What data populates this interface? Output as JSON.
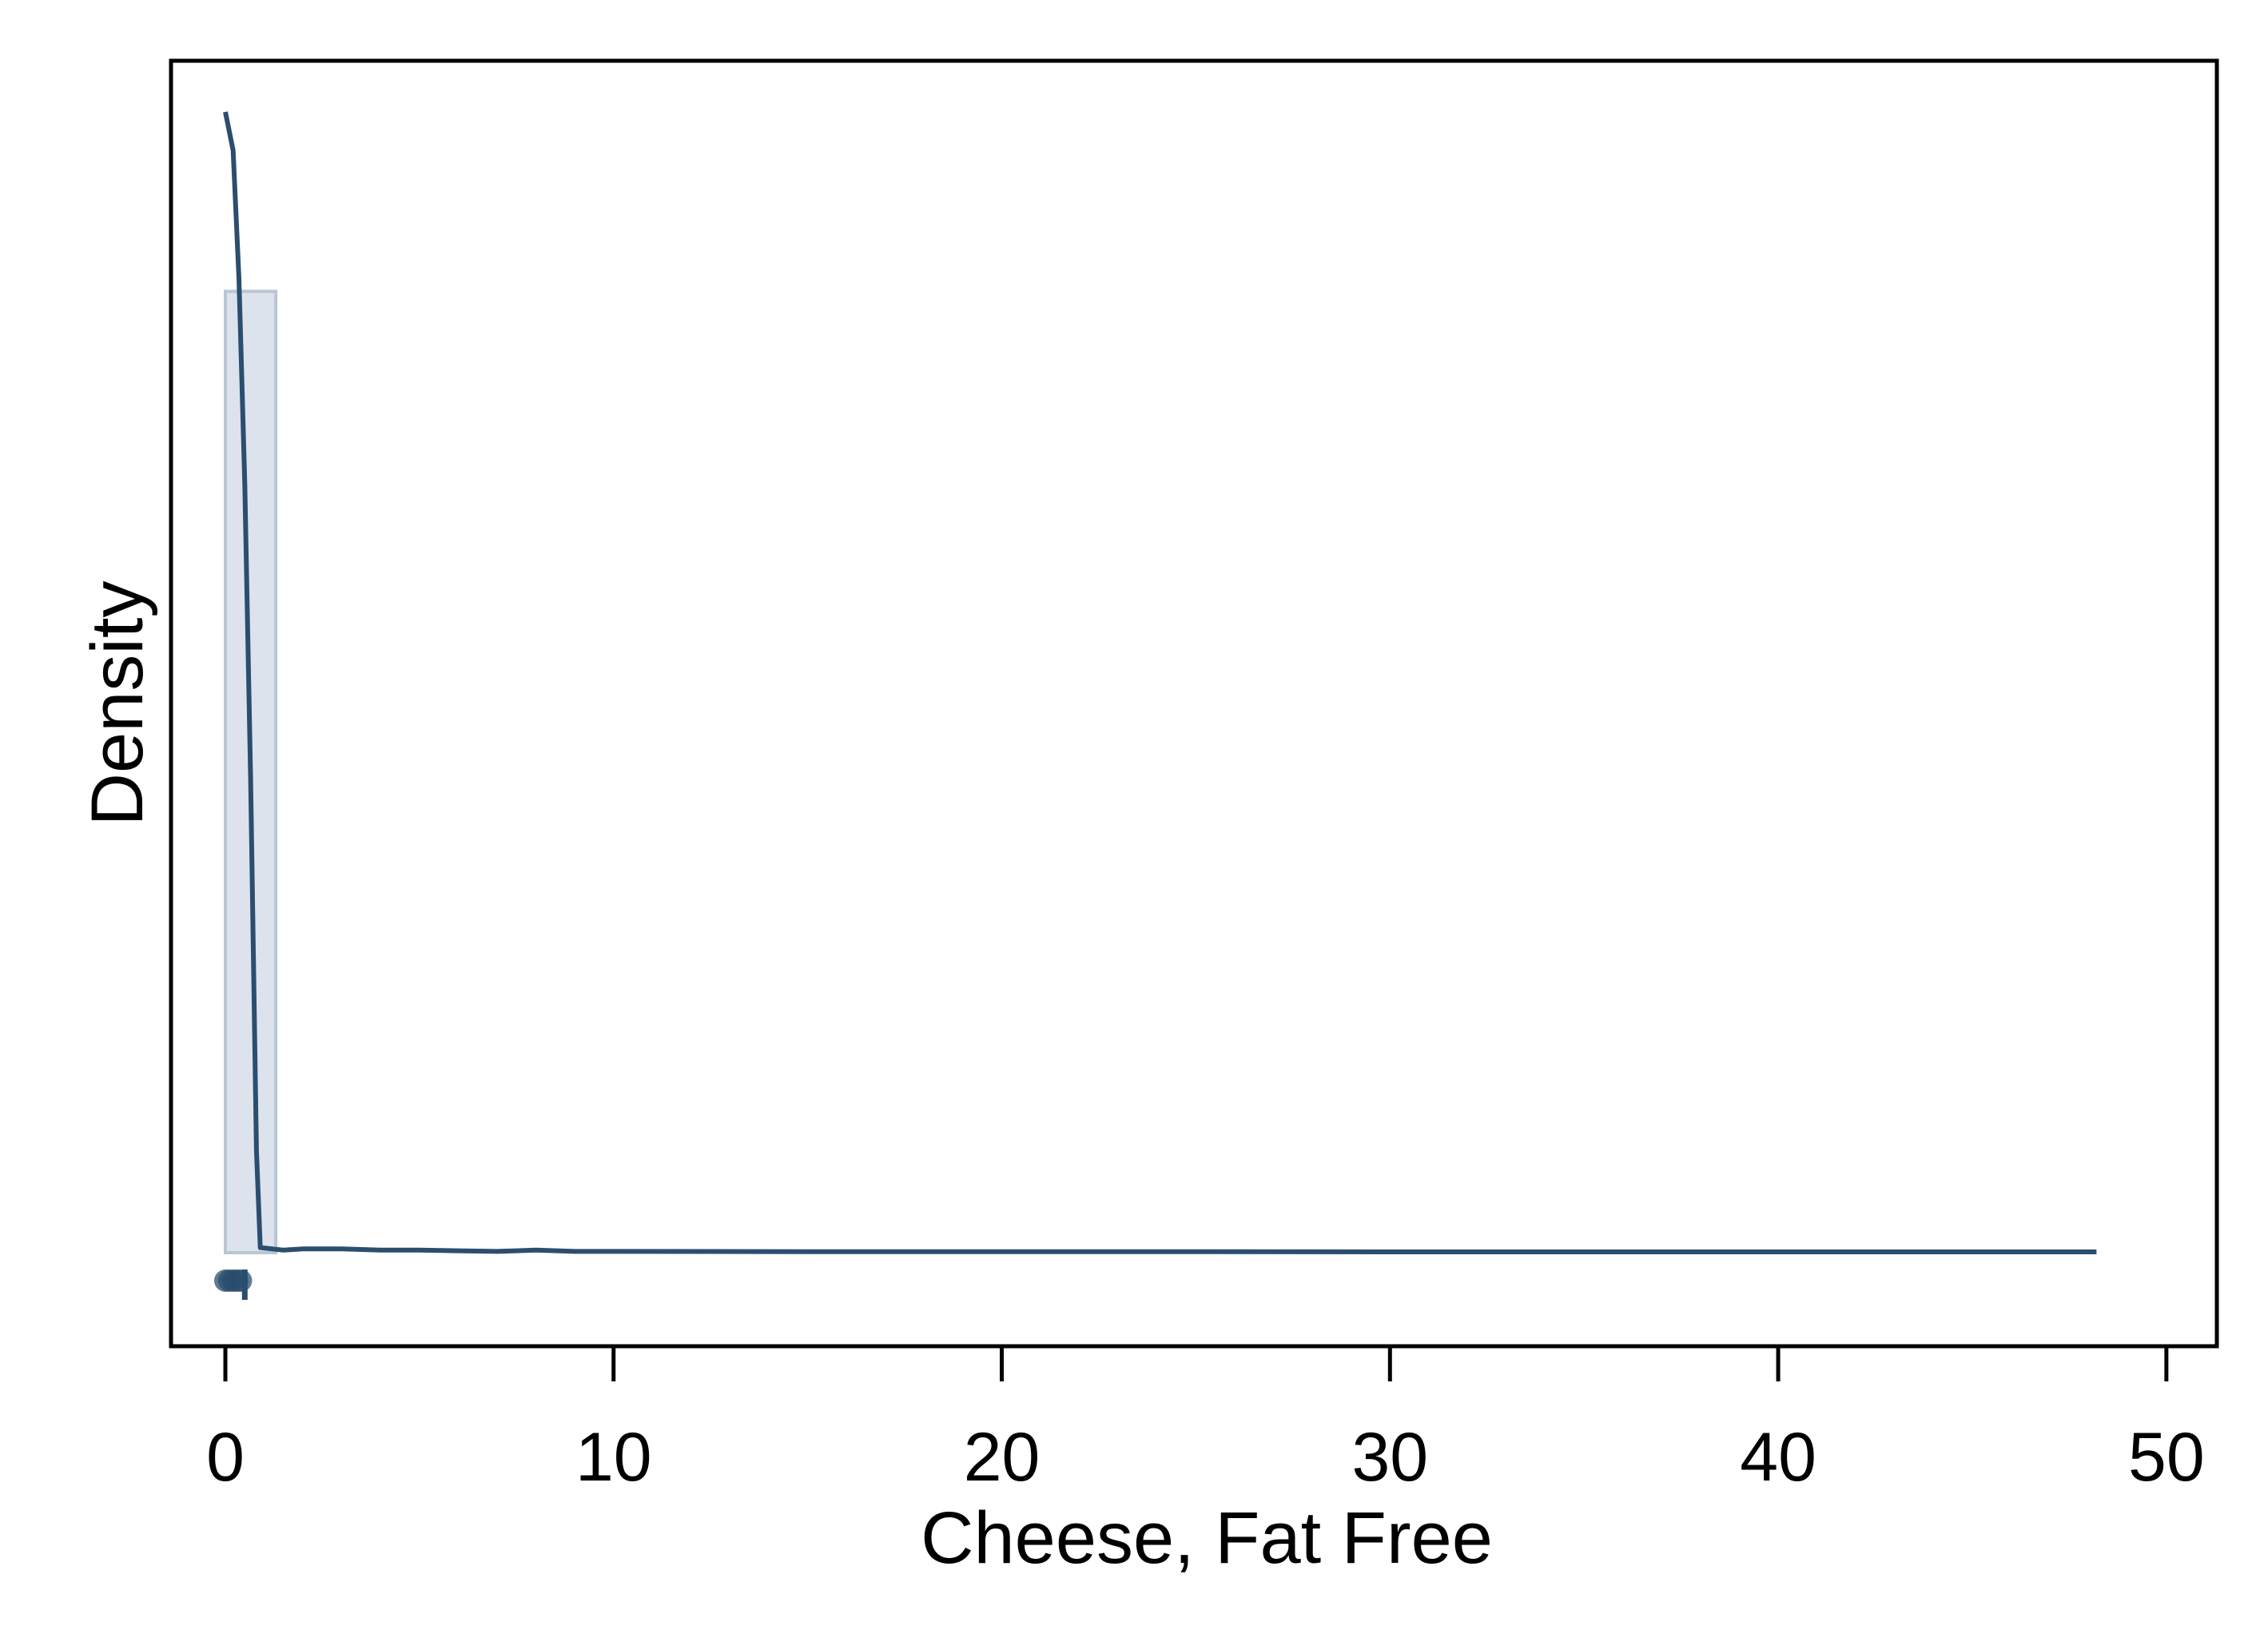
{
  "chart_data": {
    "type": "histogram",
    "xlabel": "Cheese, Fat Free",
    "ylabel": "Density",
    "xlim": [
      -1.4,
      51.3
    ],
    "x_ticks": [
      0,
      10,
      20,
      30,
      40,
      50
    ],
    "y_ticks_shown": false,
    "grid": false,
    "histogram": {
      "bins": [
        {
          "x0": 0,
          "x1": 1.3,
          "density": 0.75
        }
      ]
    },
    "density_curve": {
      "x": [
        0,
        0.2,
        0.35,
        0.5,
        0.65,
        0.8,
        0.9,
        1.5,
        2,
        3,
        4,
        5,
        6,
        7,
        8,
        9,
        10,
        15,
        20,
        25,
        30,
        35,
        40,
        45,
        48.2
      ],
      "y": [
        0.89,
        0.86,
        0.76,
        0.6,
        0.37,
        0.08,
        0.004,
        0.002,
        0.003,
        0.003,
        0.002,
        0.002,
        0.0015,
        0.001,
        0.002,
        0.001,
        0.001,
        0.0008,
        0.0008,
        0.0008,
        0.0006,
        0.0006,
        0.0006,
        0.0006,
        0.0006
      ]
    },
    "rug_points": [
      0,
      0.1,
      0.2,
      0.3,
      0.4
    ],
    "colors": {
      "line": "#2b4e6e",
      "bar_fill": "#dce3ec",
      "bar_edge": "#b9c6d3",
      "rug": "#2b4e6e",
      "frame": "#000000"
    }
  }
}
